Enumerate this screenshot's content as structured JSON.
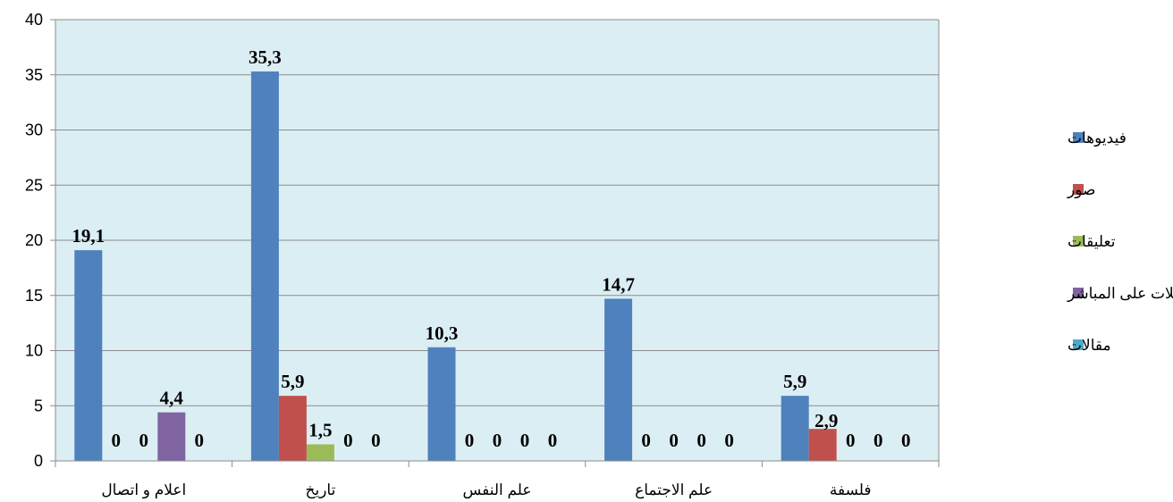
{
  "chart_data": {
    "type": "bar",
    "categories": [
      "اعلام و اتصال",
      "تاريخ",
      "علم النفس",
      "علم الاجتماع",
      "فلسفة"
    ],
    "series": [
      {
        "name": "فيديوهات",
        "color": "#4F81BD",
        "values": [
          19.1,
          35.3,
          10.3,
          14.7,
          5.9
        ],
        "labels": [
          "19,1",
          "35,3",
          "10,3",
          "14,7",
          "5,9"
        ]
      },
      {
        "name": "صور",
        "color": "#C0504D",
        "values": [
          0,
          5.9,
          0,
          0,
          2.9
        ],
        "labels": [
          "0",
          "5,9",
          "0",
          "0",
          "2,9"
        ]
      },
      {
        "name": "تعليقات",
        "color": "#9BBB59",
        "values": [
          0,
          1.5,
          0,
          0,
          0
        ],
        "labels": [
          "0",
          "1,5",
          "0",
          "0",
          "0"
        ]
      },
      {
        "name": "مداخلات على المباشر",
        "color": "#8064A2",
        "values": [
          4.4,
          0,
          0,
          0,
          0
        ],
        "labels": [
          "4,4",
          "0",
          "0",
          "0",
          "0"
        ]
      },
      {
        "name": "مقالات",
        "color": "#4BACC6",
        "values": [
          0,
          0,
          0,
          0,
          0
        ],
        "labels": [
          "0",
          "0",
          "0",
          "0",
          "0"
        ]
      }
    ],
    "yticks": [
      "0",
      "5",
      "10",
      "15",
      "20",
      "25",
      "30",
      "35",
      "40"
    ],
    "ylim": [
      0,
      40
    ],
    "grid": true,
    "plot_background": "#DBEEF4",
    "legend_position": "right"
  }
}
